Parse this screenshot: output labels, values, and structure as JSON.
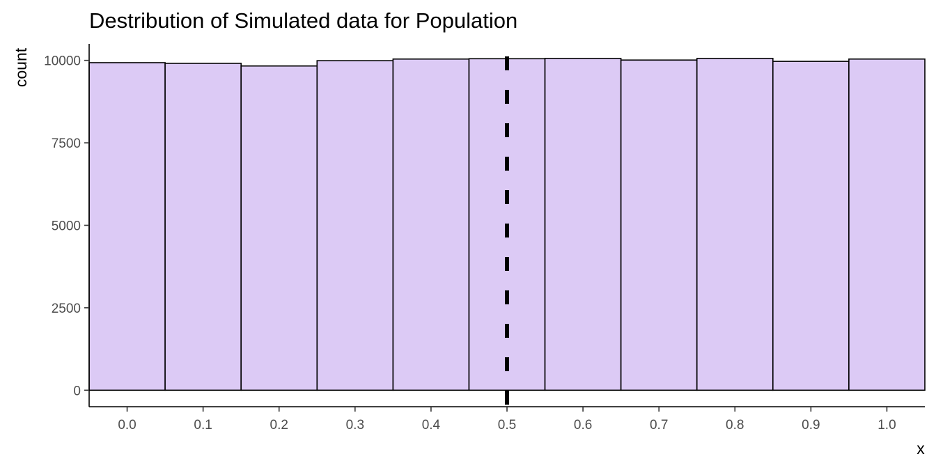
{
  "chart_data": {
    "type": "bar",
    "subtype": "histogram",
    "title": "Destribution of Simulated data for Population",
    "xlabel": "x",
    "ylabel": "count",
    "bin_edges": [
      0.0,
      0.1,
      0.2,
      0.3,
      0.4,
      0.5,
      0.6,
      0.7,
      0.8,
      0.9,
      1.0
    ],
    "values": [
      9930,
      9910,
      9830,
      9990,
      10040,
      10050,
      10060,
      10010,
      10060,
      9970,
      10040
    ],
    "bar_fill": "#dccaf5",
    "bar_stroke": "#000000",
    "xlim": [
      -0.05,
      1.05
    ],
    "ylim": [
      -500,
      10500
    ],
    "x_ticks": [
      0.0,
      0.1,
      0.2,
      0.3,
      0.4,
      0.5,
      0.6,
      0.7,
      0.8,
      0.9,
      1.0
    ],
    "x_tick_labels": [
      "0.0",
      "0.1",
      "0.2",
      "0.3",
      "0.4",
      "0.5",
      "0.6",
      "0.7",
      "0.8",
      "0.9",
      "1.0"
    ],
    "y_ticks": [
      0,
      2500,
      5000,
      7500,
      10000
    ],
    "y_tick_labels": [
      "0",
      "2500",
      "5000",
      "7500",
      "10000"
    ],
    "reference_line": {
      "x": 0.5,
      "style": "dashed",
      "color": "#000000"
    },
    "grid": false,
    "legend": "none"
  }
}
